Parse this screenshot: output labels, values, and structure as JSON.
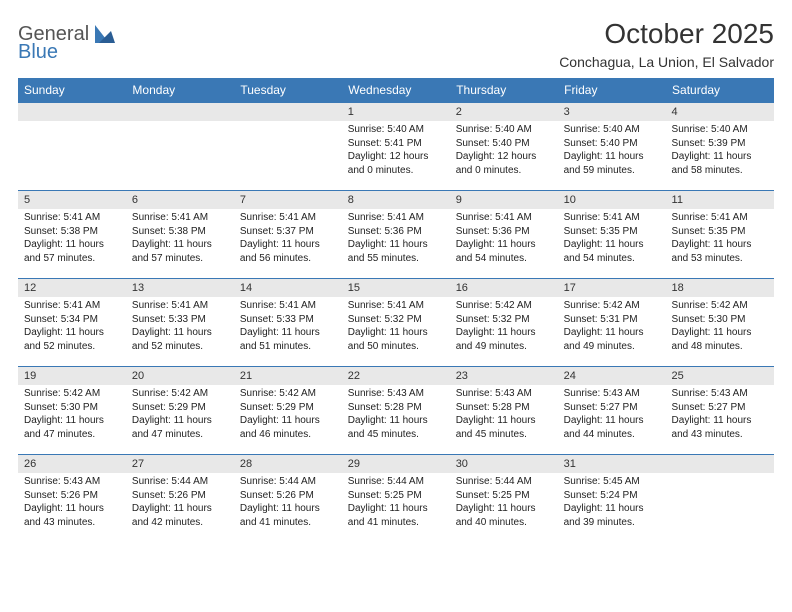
{
  "logo": {
    "word1": "General",
    "word2": "Blue"
  },
  "title": "October 2025",
  "subtitle": "Conchagua, La Union, El Salvador",
  "colors": {
    "header_bg": "#3a78b5",
    "header_text": "#ffffff",
    "daynum_bg": "#e8e8e8",
    "border": "#3a78b5",
    "text": "#222222",
    "logo_gray": "#555555",
    "logo_blue": "#3a78b5",
    "page_bg": "#ffffff"
  },
  "typography": {
    "title_fontsize": 28,
    "subtitle_fontsize": 14,
    "dayheader_fontsize": 12,
    "daynum_fontsize": 11,
    "details_fontsize": 10
  },
  "day_headers": [
    "Sunday",
    "Monday",
    "Tuesday",
    "Wednesday",
    "Thursday",
    "Friday",
    "Saturday"
  ],
  "weeks": [
    [
      null,
      null,
      null,
      {
        "n": "1",
        "sr": "5:40 AM",
        "ss": "5:41 PM",
        "dl": "12 hours and 0 minutes."
      },
      {
        "n": "2",
        "sr": "5:40 AM",
        "ss": "5:40 PM",
        "dl": "12 hours and 0 minutes."
      },
      {
        "n": "3",
        "sr": "5:40 AM",
        "ss": "5:40 PM",
        "dl": "11 hours and 59 minutes."
      },
      {
        "n": "4",
        "sr": "5:40 AM",
        "ss": "5:39 PM",
        "dl": "11 hours and 58 minutes."
      }
    ],
    [
      {
        "n": "5",
        "sr": "5:41 AM",
        "ss": "5:38 PM",
        "dl": "11 hours and 57 minutes."
      },
      {
        "n": "6",
        "sr": "5:41 AM",
        "ss": "5:38 PM",
        "dl": "11 hours and 57 minutes."
      },
      {
        "n": "7",
        "sr": "5:41 AM",
        "ss": "5:37 PM",
        "dl": "11 hours and 56 minutes."
      },
      {
        "n": "8",
        "sr": "5:41 AM",
        "ss": "5:36 PM",
        "dl": "11 hours and 55 minutes."
      },
      {
        "n": "9",
        "sr": "5:41 AM",
        "ss": "5:36 PM",
        "dl": "11 hours and 54 minutes."
      },
      {
        "n": "10",
        "sr": "5:41 AM",
        "ss": "5:35 PM",
        "dl": "11 hours and 54 minutes."
      },
      {
        "n": "11",
        "sr": "5:41 AM",
        "ss": "5:35 PM",
        "dl": "11 hours and 53 minutes."
      }
    ],
    [
      {
        "n": "12",
        "sr": "5:41 AM",
        "ss": "5:34 PM",
        "dl": "11 hours and 52 minutes."
      },
      {
        "n": "13",
        "sr": "5:41 AM",
        "ss": "5:33 PM",
        "dl": "11 hours and 52 minutes."
      },
      {
        "n": "14",
        "sr": "5:41 AM",
        "ss": "5:33 PM",
        "dl": "11 hours and 51 minutes."
      },
      {
        "n": "15",
        "sr": "5:41 AM",
        "ss": "5:32 PM",
        "dl": "11 hours and 50 minutes."
      },
      {
        "n": "16",
        "sr": "5:42 AM",
        "ss": "5:32 PM",
        "dl": "11 hours and 49 minutes."
      },
      {
        "n": "17",
        "sr": "5:42 AM",
        "ss": "5:31 PM",
        "dl": "11 hours and 49 minutes."
      },
      {
        "n": "18",
        "sr": "5:42 AM",
        "ss": "5:30 PM",
        "dl": "11 hours and 48 minutes."
      }
    ],
    [
      {
        "n": "19",
        "sr": "5:42 AM",
        "ss": "5:30 PM",
        "dl": "11 hours and 47 minutes."
      },
      {
        "n": "20",
        "sr": "5:42 AM",
        "ss": "5:29 PM",
        "dl": "11 hours and 47 minutes."
      },
      {
        "n": "21",
        "sr": "5:42 AM",
        "ss": "5:29 PM",
        "dl": "11 hours and 46 minutes."
      },
      {
        "n": "22",
        "sr": "5:43 AM",
        "ss": "5:28 PM",
        "dl": "11 hours and 45 minutes."
      },
      {
        "n": "23",
        "sr": "5:43 AM",
        "ss": "5:28 PM",
        "dl": "11 hours and 45 minutes."
      },
      {
        "n": "24",
        "sr": "5:43 AM",
        "ss": "5:27 PM",
        "dl": "11 hours and 44 minutes."
      },
      {
        "n": "25",
        "sr": "5:43 AM",
        "ss": "5:27 PM",
        "dl": "11 hours and 43 minutes."
      }
    ],
    [
      {
        "n": "26",
        "sr": "5:43 AM",
        "ss": "5:26 PM",
        "dl": "11 hours and 43 minutes."
      },
      {
        "n": "27",
        "sr": "5:44 AM",
        "ss": "5:26 PM",
        "dl": "11 hours and 42 minutes."
      },
      {
        "n": "28",
        "sr": "5:44 AM",
        "ss": "5:26 PM",
        "dl": "11 hours and 41 minutes."
      },
      {
        "n": "29",
        "sr": "5:44 AM",
        "ss": "5:25 PM",
        "dl": "11 hours and 41 minutes."
      },
      {
        "n": "30",
        "sr": "5:44 AM",
        "ss": "5:25 PM",
        "dl": "11 hours and 40 minutes."
      },
      {
        "n": "31",
        "sr": "5:45 AM",
        "ss": "5:24 PM",
        "dl": "11 hours and 39 minutes."
      },
      null
    ]
  ],
  "labels": {
    "sunrise": "Sunrise:",
    "sunset": "Sunset:",
    "daylight": "Daylight:"
  }
}
